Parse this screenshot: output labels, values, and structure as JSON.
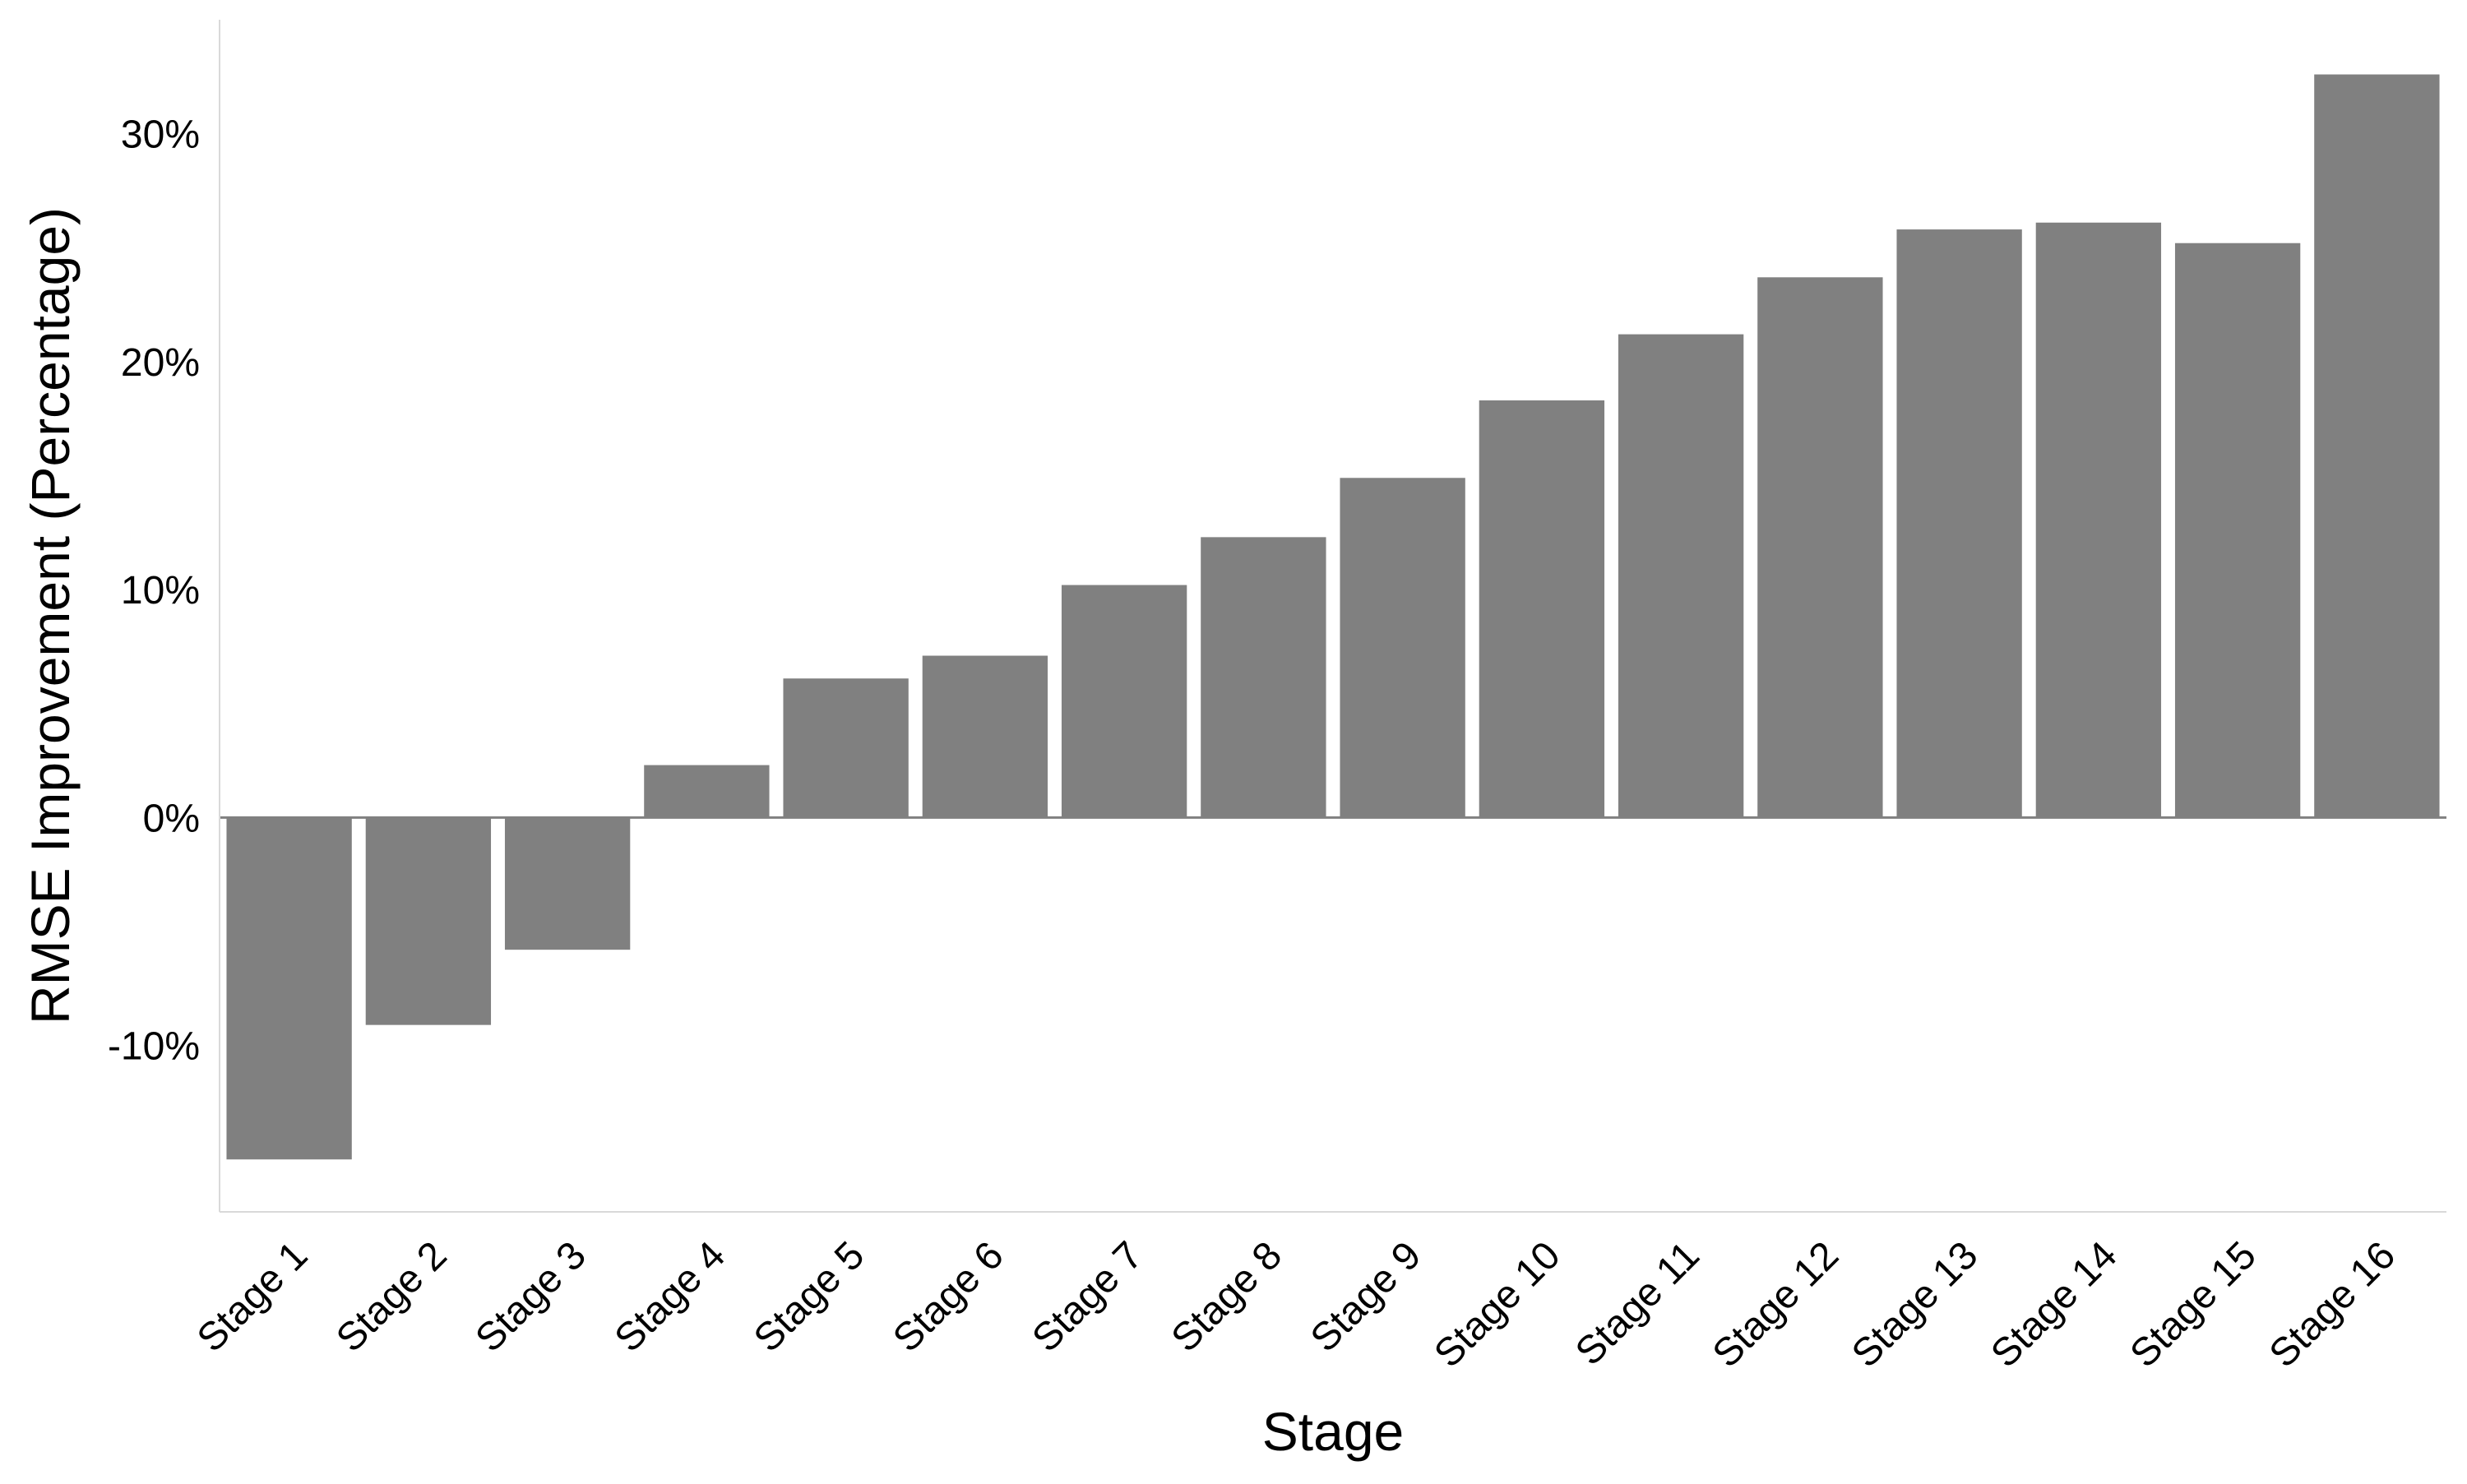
{
  "chart_data": {
    "type": "bar",
    "title": "",
    "xlabel": "Stage",
    "ylabel": "RMSE Improvement (Percentage)",
    "categories": [
      "Stage 1",
      "Stage 2",
      "Stage 3",
      "Stage 4",
      "Stage 5",
      "Stage 6",
      "Stage 7",
      "Stage 8",
      "Stage 9",
      "Stage 10",
      "Stage 11",
      "Stage 12",
      "Stage 13",
      "Stage 14",
      "Stage 15",
      "Stage 16"
    ],
    "values": [
      -15.0,
      -9.1,
      -5.8,
      2.3,
      6.1,
      7.1,
      10.2,
      12.3,
      14.9,
      18.3,
      21.2,
      23.7,
      25.8,
      26.1,
      25.2,
      32.6
    ],
    "ylim": [
      -17.3,
      35.0
    ],
    "yticks": [
      -10,
      0,
      10,
      20,
      30
    ],
    "ytick_labels": [
      "-10%",
      "0%",
      "10%",
      "20%",
      "30%"
    ],
    "grid": false,
    "legend": false,
    "colors": {
      "bar": "#808080",
      "zero_line": "#808080",
      "axis": "#d9d9d9"
    }
  }
}
